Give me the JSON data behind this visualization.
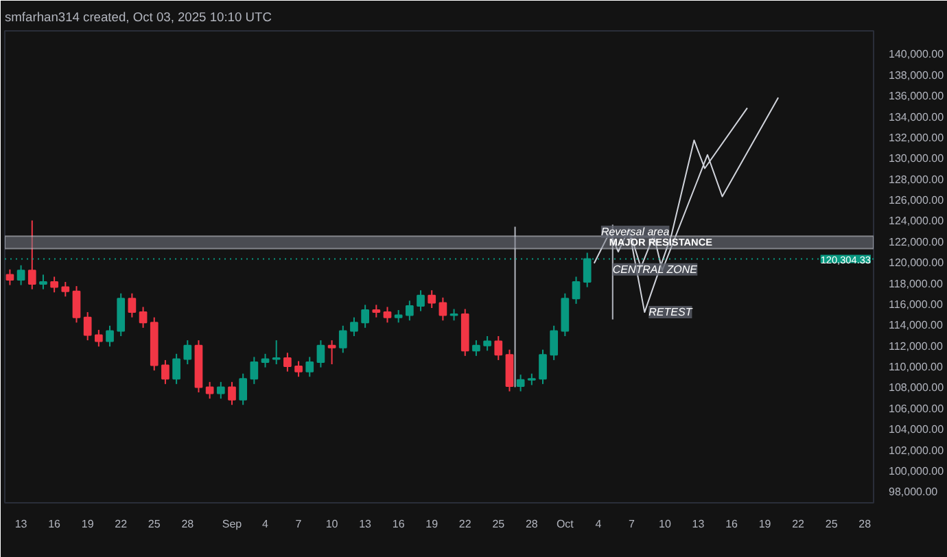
{
  "chart_data": {
    "type": "candlestick",
    "title": "smfarhan314 created, Oct 03, 2025 10:10 UTC",
    "x": [
      "2025-08-12",
      "2025-08-13",
      "2025-08-14",
      "2025-08-15",
      "2025-08-16",
      "2025-08-17",
      "2025-08-18",
      "2025-08-19",
      "2025-08-20",
      "2025-08-21",
      "2025-08-22",
      "2025-08-23",
      "2025-08-24",
      "2025-08-25",
      "2025-08-26",
      "2025-08-27",
      "2025-08-28",
      "2025-08-29",
      "2025-08-30",
      "2025-08-31",
      "2025-09-01",
      "2025-09-02",
      "2025-09-03",
      "2025-09-04",
      "2025-09-05",
      "2025-09-06",
      "2025-09-07",
      "2025-09-08",
      "2025-09-09",
      "2025-09-10",
      "2025-09-11",
      "2025-09-12",
      "2025-09-13",
      "2025-09-14",
      "2025-09-15",
      "2025-09-16",
      "2025-09-17",
      "2025-09-18",
      "2025-09-19",
      "2025-09-20",
      "2025-09-21",
      "2025-09-22",
      "2025-09-23",
      "2025-09-24",
      "2025-09-25",
      "2025-09-26",
      "2025-09-27",
      "2025-09-28",
      "2025-09-29",
      "2025-09-30",
      "2025-10-01",
      "2025-10-02",
      "2025-10-03"
    ],
    "ohlc": [
      [
        118800,
        119300,
        117800,
        118300
      ],
      [
        118300,
        119700,
        117800,
        119200
      ],
      [
        119200,
        124000,
        117400,
        117900
      ],
      [
        117900,
        118800,
        117400,
        118100
      ],
      [
        118100,
        118600,
        117100,
        117600
      ],
      [
        117600,
        118100,
        116700,
        117200
      ],
      [
        117200,
        117700,
        114200,
        114700
      ],
      [
        114700,
        115200,
        112500,
        113000
      ],
      [
        113000,
        113500,
        111900,
        112400
      ],
      [
        112400,
        113900,
        111900,
        113400
      ],
      [
        113400,
        117000,
        112900,
        116500
      ],
      [
        116500,
        117000,
        114700,
        115200
      ],
      [
        115200,
        115700,
        113700,
        114200
      ],
      [
        114200,
        114700,
        109600,
        110100
      ],
      [
        110100,
        110600,
        108300,
        108800
      ],
      [
        108800,
        111200,
        108300,
        110700
      ],
      [
        110700,
        112500,
        110200,
        112000
      ],
      [
        112000,
        112500,
        107500,
        108000
      ],
      [
        108000,
        108500,
        106900,
        107400
      ],
      [
        107400,
        108500,
        106900,
        108000
      ],
      [
        108000,
        108500,
        106300,
        106800
      ],
      [
        106800,
        109300,
        106300,
        108800
      ],
      [
        108800,
        110900,
        108300,
        110400
      ],
      [
        110400,
        111200,
        109900,
        110700
      ],
      [
        110700,
        112500,
        110200,
        110800
      ],
      [
        110800,
        111300,
        109500,
        110000
      ],
      [
        110000,
        110500,
        109000,
        109500
      ],
      [
        109500,
        110900,
        109000,
        110400
      ],
      [
        110400,
        112500,
        109900,
        112000
      ],
      [
        112000,
        112500,
        110200,
        111800
      ],
      [
        111800,
        113900,
        111300,
        113400
      ],
      [
        113400,
        114700,
        112900,
        114200
      ],
      [
        114200,
        115900,
        113700,
        115400
      ],
      [
        115400,
        115900,
        114700,
        115200
      ],
      [
        115200,
        115700,
        114200,
        114700
      ],
      [
        114700,
        115400,
        114200,
        114900
      ],
      [
        114900,
        116300,
        114400,
        115800
      ],
      [
        115800,
        117300,
        115300,
        116800
      ],
      [
        116800,
        117300,
        115600,
        116100
      ],
      [
        116100,
        116600,
        114400,
        114900
      ],
      [
        114900,
        115500,
        114400,
        115000
      ],
      [
        115000,
        115500,
        111000,
        111500
      ],
      [
        111500,
        112500,
        111000,
        112000
      ],
      [
        112000,
        112900,
        111500,
        112400
      ],
      [
        112400,
        112900,
        110600,
        111100
      ],
      [
        111100,
        111600,
        107600,
        108100
      ],
      [
        108100,
        109200,
        107600,
        108700
      ],
      [
        108700,
        109300,
        108200,
        108800
      ],
      [
        108800,
        111600,
        108300,
        111100
      ],
      [
        111100,
        113900,
        110600,
        113400
      ],
      [
        113400,
        117000,
        112900,
        116500
      ],
      [
        116500,
        118600,
        116000,
        118100
      ],
      [
        118100,
        120900,
        117600,
        120304
      ]
    ],
    "colors": [
      "#f23645",
      "#089981",
      "#f23645",
      "#089981",
      "#f23645",
      "#f23645",
      "#f23645",
      "#f23645",
      "#f23645",
      "#089981",
      "#089981",
      "#f23645",
      "#f23645",
      "#f23645",
      "#f23645",
      "#089981",
      "#089981",
      "#f23645",
      "#f23645",
      "#089981",
      "#f23645",
      "#089981",
      "#089981",
      "#089981",
      "#089981",
      "#f23645",
      "#f23645",
      "#089981",
      "#089981",
      "#f23645",
      "#089981",
      "#089981",
      "#089981",
      "#f23645",
      "#f23645",
      "#089981",
      "#089981",
      "#089981",
      "#f23645",
      "#f23645",
      "#089981",
      "#f23645",
      "#089981",
      "#089981",
      "#f23645",
      "#f23645",
      "#089981",
      "#089981",
      "#089981",
      "#089981",
      "#089981",
      "#089981",
      "#089981"
    ],
    "series": [
      {
        "type": "line",
        "color": "#d1d4dc",
        "x": [
          "2025-10-03T15:00",
          "2025-10-05T01:00",
          "2025-10-05T19:00",
          "2025-10-06T18:00",
          "2025-10-08T04:00",
          "2025-10-10T14:00",
          "2025-10-12T15:00",
          "2025-10-13T14:00",
          "2025-10-17T10:00"
        ],
        "values": [
          119900,
          122900,
          121000,
          123200,
          115200,
          122600,
          131700,
          129000,
          134800
        ]
      },
      {
        "type": "line",
        "color": "#d1d4dc",
        "x": [
          "2025-10-06T18:00",
          "2025-10-07T20:00",
          "2025-10-09T00:00",
          "2025-10-09T18:00",
          "2025-10-13T20:00",
          "2025-10-15T04:00",
          "2025-10-20T05:00"
        ],
        "values": [
          123200,
          119500,
          122600,
          119200,
          130300,
          126300,
          135800
        ]
      },
      {
        "type": "line",
        "color": "#b2b5be",
        "x": [
          "2025-09-26T12:00",
          "2025-09-26T12:00"
        ],
        "values": [
          108000,
          123400
        ]
      },
      {
        "type": "line",
        "color": "#b2b5be",
        "x": [
          "2025-10-05T07:00",
          "2025-10-05T07:00"
        ],
        "values": [
          114500,
          123600
        ]
      }
    ],
    "bands": [
      {
        "axis": "y",
        "from": 121300,
        "to": 122500,
        "label": "MAJOR RESISTANCE",
        "color": "#787b86"
      }
    ],
    "ref_lines": [
      {
        "axis": "y",
        "value": 120304.33,
        "label": "120,304.33",
        "color": "#089981",
        "line_style": "dotted"
      }
    ],
    "annotations": [
      {
        "text": "Reversal area",
        "x": "2025-10-03T21:00",
        "y": 122900
      },
      {
        "text": "CENTRAL ZONE",
        "x": "2025-10-04T22:00",
        "y": 119300
      },
      {
        "text": "RETEST",
        "x": "2025-10-08T04:00",
        "y": 115200
      }
    ],
    "xlim": [
      "2025-08-11T13:00",
      "2025-10-28T19:00"
    ],
    "ylim": [
      96900,
      142200
    ],
    "xticks": [
      {
        "value": "2025-08-13",
        "label": "13"
      },
      {
        "value": "2025-08-16",
        "label": "16"
      },
      {
        "value": "2025-08-19",
        "label": "19"
      },
      {
        "value": "2025-08-22",
        "label": "22"
      },
      {
        "value": "2025-08-25",
        "label": "25"
      },
      {
        "value": "2025-08-28",
        "label": "28"
      },
      {
        "value": "2025-09-01",
        "label": "Sep"
      },
      {
        "value": "2025-09-04",
        "label": "4"
      },
      {
        "value": "2025-09-07",
        "label": "7"
      },
      {
        "value": "2025-09-10",
        "label": "10"
      },
      {
        "value": "2025-09-13",
        "label": "13"
      },
      {
        "value": "2025-09-16",
        "label": "16"
      },
      {
        "value": "2025-09-19",
        "label": "19"
      },
      {
        "value": "2025-09-22",
        "label": "22"
      },
      {
        "value": "2025-09-25",
        "label": "25"
      },
      {
        "value": "2025-09-28",
        "label": "28"
      },
      {
        "value": "2025-10-01",
        "label": "Oct"
      },
      {
        "value": "2025-10-04",
        "label": "4"
      },
      {
        "value": "2025-10-07",
        "label": "7"
      },
      {
        "value": "2025-10-10",
        "label": "10"
      },
      {
        "value": "2025-10-13",
        "label": "13"
      },
      {
        "value": "2025-10-16",
        "label": "16"
      },
      {
        "value": "2025-10-19",
        "label": "19"
      },
      {
        "value": "2025-10-22",
        "label": "22"
      },
      {
        "value": "2025-10-25",
        "label": "25"
      },
      {
        "value": "2025-10-28",
        "label": "28"
      }
    ],
    "yticks": [
      {
        "value": 98000,
        "label": "98,000.00"
      },
      {
        "value": 100000,
        "label": "100,000.00"
      },
      {
        "value": 102000,
        "label": "102,000.00"
      },
      {
        "value": 104000,
        "label": "104,000.00"
      },
      {
        "value": 106000,
        "label": "106,000.00"
      },
      {
        "value": 108000,
        "label": "108,000.00"
      },
      {
        "value": 110000,
        "label": "110,000.00"
      },
      {
        "value": 112000,
        "label": "112,000.00"
      },
      {
        "value": 114000,
        "label": "114,000.00"
      },
      {
        "value": 116000,
        "label": "116,000.00"
      },
      {
        "value": 118000,
        "label": "118,000.00"
      },
      {
        "value": 120000,
        "label": "120,000.00"
      },
      {
        "value": 122000,
        "label": "122,000.00"
      },
      {
        "value": 124000,
        "label": "124,000.00"
      },
      {
        "value": 126000,
        "label": "126,000.00"
      },
      {
        "value": 128000,
        "label": "128,000.00"
      },
      {
        "value": 130000,
        "label": "130,000.00"
      },
      {
        "value": 132000,
        "label": "132,000.00"
      },
      {
        "value": 134000,
        "label": "134,000.00"
      },
      {
        "value": 136000,
        "label": "136,000.00"
      },
      {
        "value": 138000,
        "label": "138,000.00"
      },
      {
        "value": 140000,
        "label": "140,000.00"
      }
    ]
  }
}
